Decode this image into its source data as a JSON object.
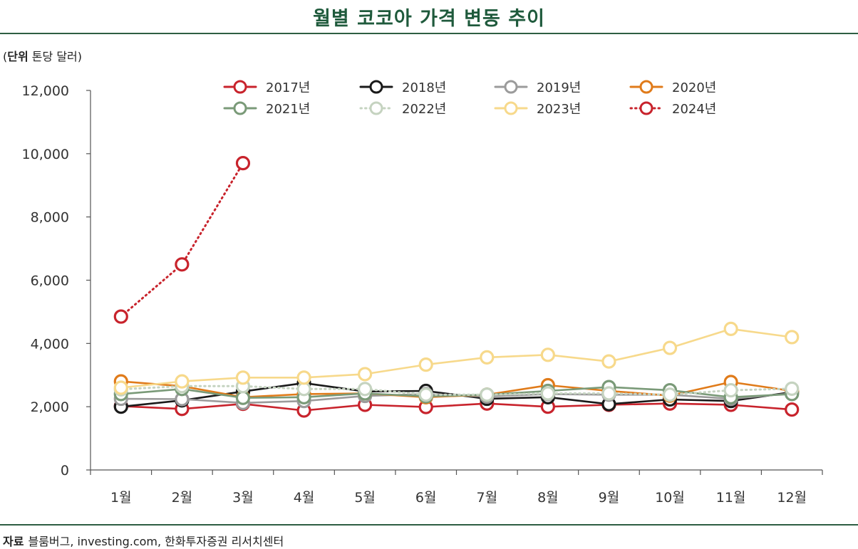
{
  "page": {
    "title": "월별 코코아 가격 변동 추이",
    "unit_label": "단위",
    "unit_text": "톤당 달러",
    "source_label": "자료",
    "source_text": "블룸버그, investing.com, 한화투자증권 리서치센터"
  },
  "chart_data": {
    "type": "line",
    "title": "월별 코코아 가격 변동 추이",
    "xlabel": "",
    "ylabel": "",
    "ylim": [
      0,
      12000
    ],
    "yticks": [
      0,
      2000,
      4000,
      6000,
      8000,
      10000,
      12000
    ],
    "ytick_labels": [
      "0",
      "2,000",
      "4,000",
      "6,000",
      "8,000",
      "10,000",
      "12,000"
    ],
    "categories": [
      "1월",
      "2월",
      "3월",
      "4월",
      "5월",
      "6월",
      "7월",
      "8월",
      "9월",
      "10월",
      "11월",
      "12월"
    ],
    "grid": false,
    "legend_position": "top",
    "series": [
      {
        "name": "2017년",
        "color": "#c8232c",
        "dashed": false,
        "values": [
          2020,
          1930,
          2090,
          1880,
          2060,
          1990,
          2100,
          2000,
          2060,
          2100,
          2060,
          1910
        ]
      },
      {
        "name": "2018년",
        "color": "#1a1a1a",
        "dashed": false,
        "values": [
          2000,
          2200,
          2480,
          2750,
          2480,
          2500,
          2250,
          2300,
          2080,
          2230,
          2180,
          2460
        ]
      },
      {
        "name": "2019년",
        "color": "#9b9b9b",
        "dashed": false,
        "values": [
          2250,
          2240,
          2120,
          2180,
          2340,
          2400,
          2320,
          2400,
          2380,
          2380,
          2250,
          2420
        ]
      },
      {
        "name": "2020년",
        "color": "#e07b1a",
        "dashed": false,
        "values": [
          2800,
          2650,
          2300,
          2400,
          2420,
          2300,
          2380,
          2680,
          2500,
          2350,
          2780,
          2500
        ]
      },
      {
        "name": "2021년",
        "color": "#7a9a78",
        "dashed": false,
        "values": [
          2400,
          2560,
          2280,
          2300,
          2420,
          2330,
          2380,
          2500,
          2620,
          2520,
          2300,
          2400
        ]
      },
      {
        "name": "2022년",
        "color": "#c5d3c0",
        "dashed": true,
        "values": [
          2550,
          2650,
          2650,
          2560,
          2560,
          2380,
          2380,
          2420,
          2420,
          2380,
          2520,
          2570
        ]
      },
      {
        "name": "2023년",
        "color": "#f7d98b",
        "dashed": false,
        "values": [
          2600,
          2800,
          2920,
          2920,
          3030,
          3330,
          3560,
          3640,
          3430,
          3860,
          4460,
          4200
        ]
      },
      {
        "name": "2024년",
        "color": "#c8232c",
        "dashed": true,
        "values": [
          4850,
          6500,
          9700,
          null,
          null,
          null,
          null,
          null,
          null,
          null,
          null,
          null
        ]
      }
    ]
  }
}
